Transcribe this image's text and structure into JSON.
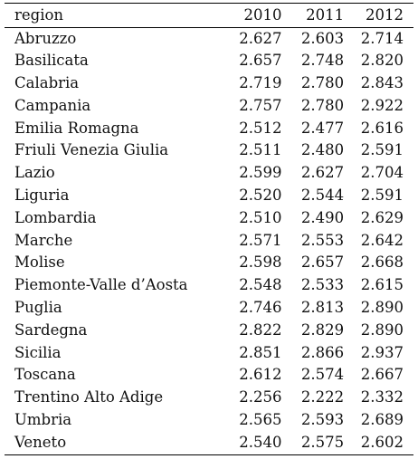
{
  "table": {
    "headers": {
      "region": "region",
      "y2010": "2010",
      "y2011": "2011",
      "y2012": "2012"
    },
    "rows": [
      {
        "region": "Abruzzo",
        "y2010": "2.627",
        "y2011": "2.603",
        "y2012": "2.714"
      },
      {
        "region": "Basilicata",
        "y2010": "2.657",
        "y2011": "2.748",
        "y2012": "2.820"
      },
      {
        "region": "Calabria",
        "y2010": "2.719",
        "y2011": "2.780",
        "y2012": "2.843"
      },
      {
        "region": "Campania",
        "y2010": "2.757",
        "y2011": "2.780",
        "y2012": "2.922"
      },
      {
        "region": "Emilia Romagna",
        "y2010": "2.512",
        "y2011": "2.477",
        "y2012": "2.616"
      },
      {
        "region": "Friuli Venezia Giulia",
        "y2010": "2.511",
        "y2011": "2.480",
        "y2012": "2.591"
      },
      {
        "region": "Lazio",
        "y2010": "2.599",
        "y2011": "2.627",
        "y2012": "2.704"
      },
      {
        "region": "Liguria",
        "y2010": "2.520",
        "y2011": "2.544",
        "y2012": "2.591"
      },
      {
        "region": "Lombardia",
        "y2010": "2.510",
        "y2011": "2.490",
        "y2012": "2.629"
      },
      {
        "region": "Marche",
        "y2010": "2.571",
        "y2011": "2.553",
        "y2012": "2.642"
      },
      {
        "region": "Molise",
        "y2010": "2.598",
        "y2011": "2.657",
        "y2012": "2.668"
      },
      {
        "region": "Piemonte-Valle d’Aosta",
        "y2010": "2.548",
        "y2011": "2.533",
        "y2012": "2.615"
      },
      {
        "region": "Puglia",
        "y2010": "2.746",
        "y2011": "2.813",
        "y2012": "2.890"
      },
      {
        "region": "Sardegna",
        "y2010": "2.822",
        "y2011": "2.829",
        "y2012": "2.890"
      },
      {
        "region": "Sicilia",
        "y2010": "2.851",
        "y2011": "2.866",
        "y2012": "2.937"
      },
      {
        "region": "Toscana",
        "y2010": "2.612",
        "y2011": "2.574",
        "y2012": "2.667"
      },
      {
        "region": "Trentino Alto Adige",
        "y2010": "2.256",
        "y2011": "2.222",
        "y2012": "2.332"
      },
      {
        "region": "Umbria",
        "y2010": "2.565",
        "y2011": "2.593",
        "y2012": "2.689"
      },
      {
        "region": "Veneto",
        "y2010": "2.540",
        "y2011": "2.575",
        "y2012": "2.602"
      }
    ]
  }
}
